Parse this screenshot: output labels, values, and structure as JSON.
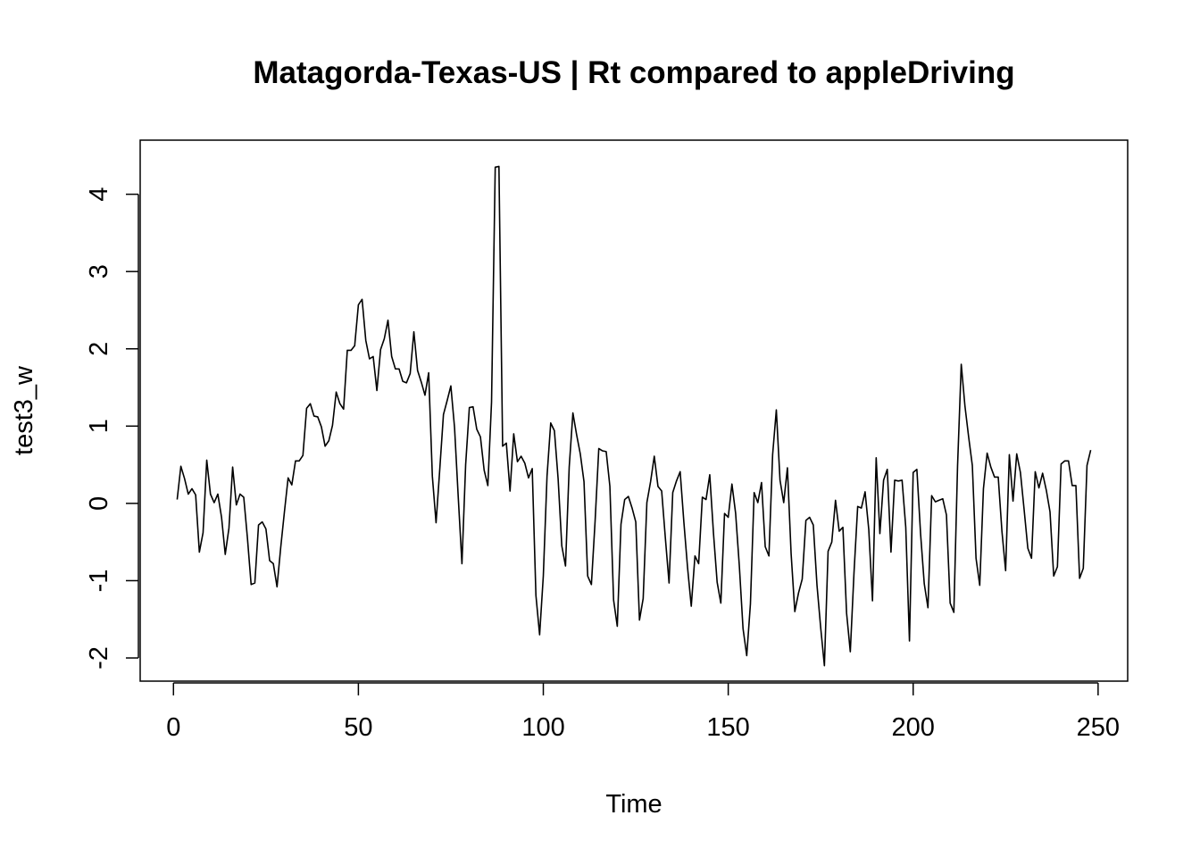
{
  "chart_data": {
    "type": "line",
    "title": "Matagorda-Texas-US | Rt compared to appleDriving",
    "xlabel": "Time",
    "ylabel": "test3_w",
    "xlim": [
      -9,
      258
    ],
    "ylim": [
      -2.3,
      4.7
    ],
    "x_ticks": [
      0,
      50,
      100,
      150,
      200,
      250
    ],
    "y_ticks": [
      -2,
      -1,
      0,
      1,
      2,
      3,
      4
    ],
    "x_tick_labels": [
      "0",
      "50",
      "100",
      "150",
      "200",
      "250"
    ],
    "y_tick_labels": [
      "-2",
      "-1",
      "0",
      "1",
      "2",
      "3",
      "4"
    ],
    "grid": false,
    "legend": "none",
    "series": [
      {
        "color": "#000000",
        "x_start": 1,
        "values": [
          0.05,
          0.48,
          0.32,
          0.12,
          0.19,
          0.11,
          -0.63,
          -0.38,
          0.56,
          0.12,
          0.01,
          0.12,
          -0.18,
          -0.66,
          -0.32,
          0.47,
          -0.02,
          0.12,
          0.08,
          -0.45,
          -1.05,
          -1.03,
          -0.28,
          -0.24,
          -0.33,
          -0.74,
          -0.78,
          -1.08,
          -0.57,
          -0.11,
          0.33,
          0.24,
          0.55,
          0.55,
          0.62,
          1.23,
          1.29,
          1.13,
          1.12,
          0.99,
          0.74,
          0.81,
          1.01,
          1.44,
          1.29,
          1.22,
          1.98,
          1.98,
          2.04,
          2.57,
          2.64,
          2.11,
          1.87,
          1.9,
          1.46,
          1.99,
          2.13,
          2.37,
          1.9,
          1.74,
          1.74,
          1.58,
          1.56,
          1.68,
          2.22,
          1.72,
          1.57,
          1.4,
          1.69,
          0.35,
          -0.25,
          0.44,
          1.15,
          1.33,
          1.52,
          0.98,
          0.08,
          -0.78,
          0.5,
          1.24,
          1.25,
          0.96,
          0.86,
          0.43,
          0.23,
          1.31,
          4.35,
          4.36,
          0.74,
          0.78,
          0.16,
          0.9,
          0.54,
          0.61,
          0.52,
          0.33,
          0.45,
          -1.19,
          -1.7,
          -0.94,
          0.35,
          1.04,
          0.94,
          0.32,
          -0.55,
          -0.81,
          0.47,
          1.17,
          0.89,
          0.64,
          0.28,
          -0.94,
          -1.05,
          -0.23,
          0.71,
          0.68,
          0.67,
          0.22,
          -1.25,
          -1.59,
          -0.27,
          0.05,
          0.09,
          -0.06,
          -0.24,
          -1.51,
          -1.23,
          0.01,
          0.28,
          0.61,
          0.22,
          0.16,
          -0.45,
          -1.03,
          0.14,
          0.29,
          0.41,
          -0.24,
          -0.83,
          -1.33,
          -0.68,
          -0.78,
          0.08,
          0.05,
          0.37,
          -0.38,
          -1.02,
          -1.29,
          -0.13,
          -0.18,
          0.25,
          -0.13,
          -0.81,
          -1.62,
          -1.97,
          -1.3,
          0.14,
          0.01,
          0.27,
          -0.56,
          -0.68,
          0.63,
          1.21,
          0.3,
          0.01,
          0.46,
          -0.65,
          -1.4,
          -1.16,
          -0.98,
          -0.22,
          -0.18,
          -0.28,
          -1.06,
          -1.61,
          -2.1,
          -0.62,
          -0.5,
          0.04,
          -0.36,
          -0.31,
          -1.42,
          -1.92,
          -0.9,
          -0.04,
          -0.06,
          0.15,
          -0.34,
          -1.26,
          0.59,
          -0.39,
          0.3,
          0.44,
          -0.63,
          0.3,
          0.29,
          0.3,
          -0.31,
          -1.78,
          0.4,
          0.44,
          -0.39,
          -1.04,
          -1.35,
          0.1,
          0.02,
          0.04,
          0.06,
          -0.15,
          -1.29,
          -1.41,
          0.48,
          1.8,
          1.26,
          0.86,
          0.49,
          -0.71,
          -1.06,
          0.19,
          0.65,
          0.47,
          0.34,
          0.34,
          -0.36,
          -0.87,
          0.63,
          0.03,
          0.64,
          0.4,
          -0.08,
          -0.58,
          -0.71,
          0.41,
          0.2,
          0.39,
          0.17,
          -0.11,
          -0.94,
          -0.82,
          0.51,
          0.55,
          0.55,
          0.23,
          0.23,
          -0.97,
          -0.84,
          0.49,
          0.69
        ]
      }
    ]
  }
}
